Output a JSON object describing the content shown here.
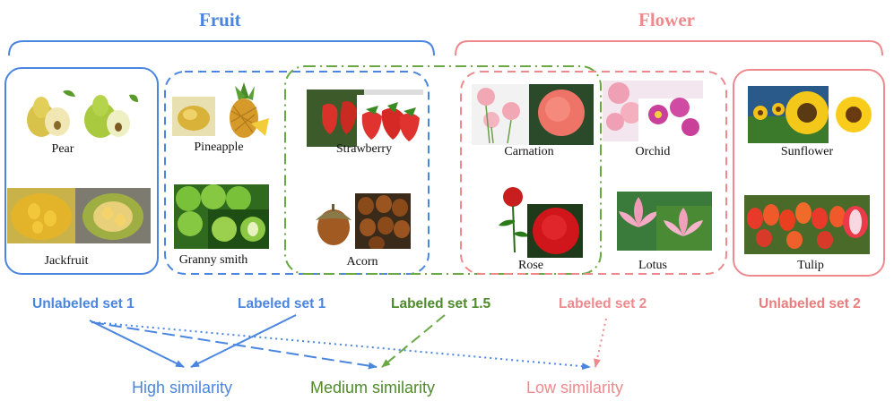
{
  "headings": {
    "fruit": "Fruit",
    "flower": "Flower"
  },
  "items": {
    "pear": "Pear",
    "jackfruit": "Jackfruit",
    "pineapple": "Pineapple",
    "granny_smith": "Granny smith",
    "strawberry": "Strawberry",
    "acorn": "Acorn",
    "carnation": "Carnation",
    "rose": "Rose",
    "orchid": "Orchid",
    "lotus": "Lotus",
    "sunflower": "Sunflower",
    "tulip": "Tulip"
  },
  "sets": {
    "unlabeled_1": "Unlabeled set 1",
    "labeled_1": "Labeled set 1",
    "labeled_1_5": "Labeled set 1.5",
    "labeled_2": "Labeled set 2",
    "unlabeled_2": "Unlabeled set 2"
  },
  "similarity": {
    "high": "High similarity",
    "medium": "Medium similarity",
    "low": "Low similarity"
  },
  "colors": {
    "fruit_blue": "#4a86e0",
    "flower_pink": "#ee8a8e",
    "medium_green": "#5e9c3a"
  }
}
